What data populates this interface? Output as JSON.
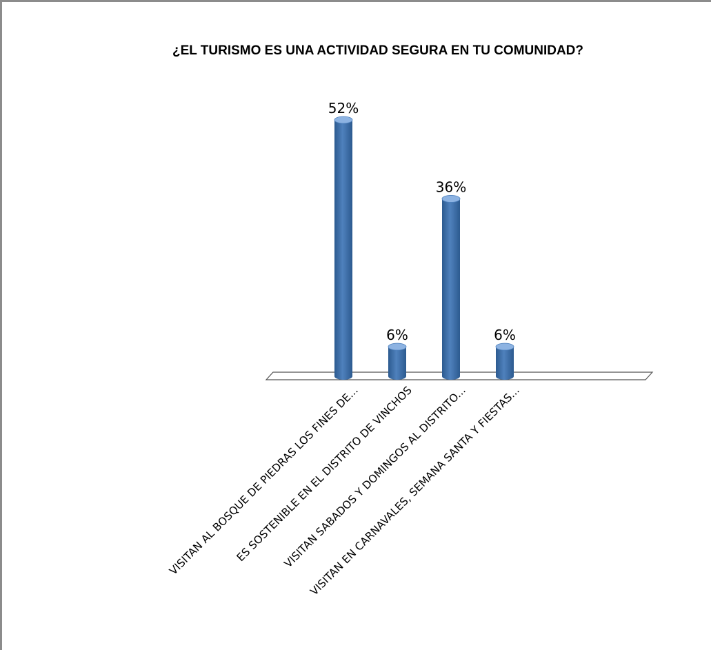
{
  "chart_data": {
    "type": "bar",
    "title": "¿EL TURISMO ES UNA ACTIVIDAD SEGURA EN TU COMUNIDAD?",
    "categories": [
      "VISITAN AL BOSQUE DE PIEDRAS LOS FINES DE...",
      "ES SOSTENIBLE EN EL DISTRITO DE VINCHOS",
      "VISITAN  SABADOS Y DOMINGOS AL DISTRITO...",
      "VISITAN EN CARNAVALES, SEMANA SANTA Y FIESTAS..."
    ],
    "values": [
      52,
      6,
      36,
      6
    ],
    "data_labels": [
      "52%",
      "6%",
      "36%",
      "6%"
    ],
    "unit": "%",
    "ylim": [
      0,
      52
    ],
    "grid": false,
    "legend": "none",
    "bar_style": "3d-cylinder",
    "colors": {
      "bar_main": "#4f81bd",
      "bar_dark": "#2c5a8f",
      "bar_light": "#8db3e2",
      "frame_border": "#8c8c8c",
      "floor_stroke": "#555555"
    }
  }
}
